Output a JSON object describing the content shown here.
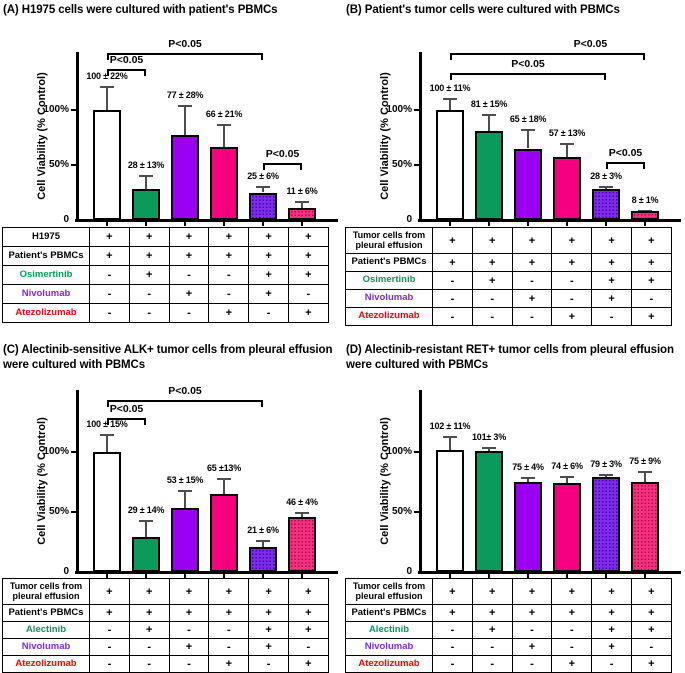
{
  "colors": {
    "bar_white": "#ffffff",
    "bar_green": "#0a9b5c",
    "bar_purple": "#9c00f0",
    "bar_magenta": "#f5017f",
    "bar_purple_pattern_base": "#7d2ce8",
    "bar_purple_pattern_dot": "#4b00b8",
    "bar_pink_pattern_base": "#f0337f",
    "bar_pink_pattern_dot": "#c80055",
    "error_bar": "#4d4d4d",
    "label_black": "#000000",
    "label_green": "#089a5a",
    "label_purple": "#7d2be2",
    "label_red": "#ff0000"
  },
  "chart_data": [
    {
      "panel": "A",
      "type": "bar",
      "title": "(A) H1975 cells were cultured with patient's PBMCs",
      "ylabel": "Cell Viability (% Control)",
      "ylim": [
        0,
        155
      ],
      "yticks": [
        {
          "label": "100%",
          "value": 100
        },
        {
          "label": "50%",
          "value": 50
        },
        {
          "label": "0",
          "value": 0
        }
      ],
      "bars": [
        {
          "value": 100,
          "err": 22,
          "label": "100 ± 22%",
          "color": "white"
        },
        {
          "value": 28,
          "err": 13,
          "label": "28 ± 13%",
          "color": "green"
        },
        {
          "value": 77,
          "err": 28,
          "label": "77 ± 28%",
          "color": "purple"
        },
        {
          "value": 66,
          "err": 21,
          "label": "66 ± 21%",
          "color": "magenta"
        },
        {
          "value": 25,
          "err": 6,
          "label": "25 ± 6%",
          "color": "purple_pattern"
        },
        {
          "value": 11,
          "err": 6,
          "label": "11 ± 6%",
          "color": "pink_pattern"
        }
      ],
      "significance": [
        {
          "from": 0,
          "to": 1,
          "level": 137,
          "label": "P<0.05",
          "align": "center"
        },
        {
          "from": 0,
          "to": 4,
          "level": 152,
          "label": "P<0.05",
          "align": "center"
        },
        {
          "from": 4,
          "to": 5,
          "level": 52,
          "label": "P<0.05",
          "align": "center"
        }
      ],
      "table": {
        "rows": [
          {
            "label": "H1975",
            "color": "black",
            "cells": [
              "+",
              "+",
              "+",
              "+",
              "+",
              "+"
            ]
          },
          {
            "label": "Patient's PBMCs",
            "color": "black",
            "cells": [
              "+",
              "+",
              "+",
              "+",
              "+",
              "+"
            ]
          },
          {
            "label": "Osimertinib",
            "color": "green",
            "cells": [
              "-",
              "+",
              "-",
              "-",
              "+",
              "+"
            ]
          },
          {
            "label": "Nivolumab",
            "color": "purple",
            "cells": [
              "-",
              "-",
              "+",
              "-",
              "+",
              "-"
            ]
          },
          {
            "label": "Atezolizumab",
            "color": "red",
            "cells": [
              "-",
              "-",
              "-",
              "+",
              "-",
              "+"
            ]
          }
        ]
      }
    },
    {
      "panel": "B",
      "type": "bar",
      "title": "(B) Patient's tumor cells were cultured with PBMCs",
      "ylabel": "Cell Viability (% Control)",
      "ylim": [
        0,
        155
      ],
      "yticks": [
        {
          "label": "100%",
          "value": 100
        },
        {
          "label": "50%",
          "value": 50
        },
        {
          "label": "0",
          "value": 0
        }
      ],
      "bars": [
        {
          "value": 100,
          "err": 11,
          "label": "100 ± 11%",
          "color": "white"
        },
        {
          "value": 81,
          "err": 15,
          "label": "81 ± 15%",
          "color": "green"
        },
        {
          "value": 65,
          "err": 18,
          "label": "65 ± 18%",
          "color": "purple"
        },
        {
          "value": 57,
          "err": 13,
          "label": "57 ± 13%",
          "color": "magenta"
        },
        {
          "value": 28,
          "err": 3,
          "label": "28 ± 3%",
          "color": "purple_pattern"
        },
        {
          "value": 8,
          "err": 1,
          "label": "8 ± 1%",
          "color": "pink_pattern"
        }
      ],
      "significance": [
        {
          "from": 0,
          "to": 5,
          "level": 152,
          "label": "P<0.05",
          "align": "right"
        },
        {
          "from": 0,
          "to": 4,
          "level": 134,
          "label": "P<0.05",
          "align": "center"
        },
        {
          "from": 4,
          "to": 5,
          "level": 53,
          "label": "P<0.05",
          "align": "center"
        }
      ],
      "table": {
        "rows": [
          {
            "label": "Tumor cells from pleural effusion",
            "color": "black",
            "cells": [
              "+",
              "+",
              "+",
              "+",
              "+",
              "+"
            ]
          },
          {
            "label": "Patient's PBMCs",
            "color": "black",
            "cells": [
              "+",
              "+",
              "+",
              "+",
              "+",
              "+"
            ]
          },
          {
            "label": "Osimertinib",
            "color": "green",
            "cells": [
              "-",
              "+",
              "-",
              "-",
              "+",
              "+"
            ]
          },
          {
            "label": "Nivolumab",
            "color": "purple",
            "cells": [
              "-",
              "-",
              "+",
              "-",
              "+",
              "-"
            ]
          },
          {
            "label": "Atezolizumab",
            "color": "red",
            "cells": [
              "-",
              "-",
              "-",
              "+",
              "-",
              "+"
            ]
          }
        ]
      }
    },
    {
      "panel": "C",
      "type": "bar",
      "title": "(C) Alectinib-sensitive ALK+ tumor cells from pleural effusion were cultured with PBMCs",
      "ylabel": "Cell Viability (% Control)",
      "ylim": [
        0,
        152
      ],
      "yticks": [
        {
          "label": "100%",
          "value": 100
        },
        {
          "label": "50%",
          "value": 50
        },
        {
          "label": "0",
          "value": 0
        }
      ],
      "bars": [
        {
          "value": 100,
          "err": 15,
          "label": "100 ± 15%",
          "color": "white"
        },
        {
          "value": 29,
          "err": 14,
          "label": "29 ± 14%",
          "color": "green"
        },
        {
          "value": 53,
          "err": 15,
          "label": "53 ± 15%",
          "color": "purple"
        },
        {
          "value": 65,
          "err": 13,
          "label": "65 ±13%",
          "color": "magenta"
        },
        {
          "value": 21,
          "err": 6,
          "label": "21 ± 6%",
          "color": "purple_pattern"
        },
        {
          "value": 46,
          "err": 4,
          "label": "46 ± 4%",
          "color": "pink_pattern"
        }
      ],
      "significance": [
        {
          "from": 0,
          "to": 1,
          "level": 128,
          "label": "P<0.05",
          "align": "center"
        },
        {
          "from": 0,
          "to": 4,
          "level": 143,
          "label": "P<0.05",
          "align": "center"
        }
      ],
      "table": {
        "rows": [
          {
            "label": "Tumor cells from pleural effusion",
            "color": "black",
            "cells": [
              "+",
              "+",
              "+",
              "+",
              "+",
              "+"
            ]
          },
          {
            "label": "Patient's PBMCs",
            "color": "black",
            "cells": [
              "+",
              "+",
              "+",
              "+",
              "+",
              "+"
            ]
          },
          {
            "label": "Alectinib",
            "color": "green",
            "cells": [
              "-",
              "+",
              "-",
              "-",
              "+",
              "+"
            ]
          },
          {
            "label": "Nivolumab",
            "color": "purple",
            "cells": [
              "-",
              "-",
              "+",
              "-",
              "+",
              "-"
            ]
          },
          {
            "label": "Atezolizumab",
            "color": "red",
            "cells": [
              "-",
              "-",
              "-",
              "+",
              "-",
              "+"
            ]
          }
        ]
      }
    },
    {
      "panel": "D",
      "type": "bar",
      "title": "(D) Alectinib-resistant RET+ tumor cells from pleural effusion were cultured with PBMCs",
      "ylabel": "Cell Viability (% Control)",
      "ylim": [
        0,
        152
      ],
      "yticks": [
        {
          "label": "100%",
          "value": 100
        },
        {
          "label": "50%",
          "value": 50
        },
        {
          "label": "0",
          "value": 0
        }
      ],
      "bars": [
        {
          "value": 102,
          "err": 11,
          "label": "102 ± 11%",
          "color": "white"
        },
        {
          "value": 101,
          "err": 3,
          "label": "101± 3%",
          "color": "green"
        },
        {
          "value": 75,
          "err": 4,
          "label": "75 ± 4%",
          "color": "purple"
        },
        {
          "value": 74,
          "err": 6,
          "label": "74 ± 6%",
          "color": "magenta"
        },
        {
          "value": 79,
          "err": 3,
          "label": "79 ± 3%",
          "color": "purple_pattern"
        },
        {
          "value": 75,
          "err": 9,
          "label": "75 ± 9%",
          "color": "pink_pattern"
        }
      ],
      "significance": [],
      "table": {
        "rows": [
          {
            "label": "Tumor cells from pleural effusion",
            "color": "black",
            "cells": [
              "+",
              "+",
              "+",
              "+",
              "+",
              "+"
            ]
          },
          {
            "label": "Patient's PBMCs",
            "color": "black",
            "cells": [
              "+",
              "+",
              "+",
              "+",
              "+",
              "+"
            ]
          },
          {
            "label": "Alectinib",
            "color": "green",
            "cells": [
              "-",
              "+",
              "-",
              "-",
              "+",
              "+"
            ]
          },
          {
            "label": "Nivolumab",
            "color": "purple",
            "cells": [
              "-",
              "-",
              "+",
              "-",
              "+",
              "-"
            ]
          },
          {
            "label": "Atezolizumab",
            "color": "red",
            "cells": [
              "-",
              "-",
              "-",
              "+",
              "-",
              "+"
            ]
          }
        ]
      }
    }
  ]
}
